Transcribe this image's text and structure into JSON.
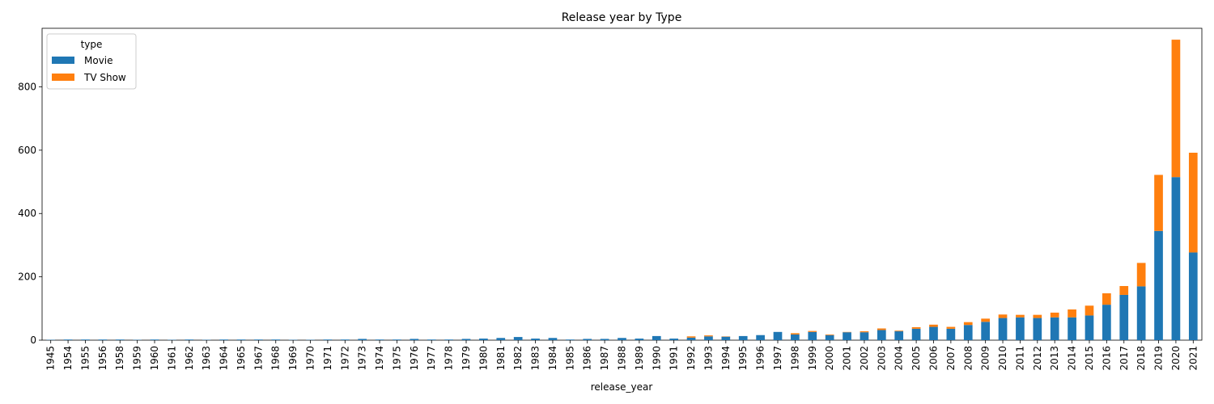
{
  "chart_data": {
    "type": "bar",
    "stacked": true,
    "title": "Release year by Type",
    "xlabel": "release_year",
    "ylabel": "",
    "ylim": [
      0,
      985
    ],
    "yticks": [
      0,
      200,
      400,
      600,
      800
    ],
    "grid": false,
    "legend": {
      "title": "type",
      "placement": "top-left"
    },
    "categories": [
      "1945",
      "1954",
      "1955",
      "1956",
      "1958",
      "1959",
      "1960",
      "1961",
      "1962",
      "1963",
      "1964",
      "1965",
      "1967",
      "1968",
      "1969",
      "1970",
      "1971",
      "1972",
      "1973",
      "1974",
      "1975",
      "1976",
      "1977",
      "1978",
      "1979",
      "1980",
      "1981",
      "1982",
      "1983",
      "1984",
      "1985",
      "1986",
      "1987",
      "1988",
      "1989",
      "1990",
      "1991",
      "1992",
      "1993",
      "1994",
      "1995",
      "1996",
      "1997",
      "1998",
      "1999",
      "2000",
      "2001",
      "2002",
      "2003",
      "2004",
      "2005",
      "2006",
      "2007",
      "2008",
      "2009",
      "2010",
      "2011",
      "2012",
      "2013",
      "2014",
      "2015",
      "2016",
      "2017",
      "2018",
      "2019",
      "2020",
      "2021"
    ],
    "series": [
      {
        "name": "Movie",
        "color": "#1f77b4",
        "values": [
          1,
          2,
          2,
          2,
          2,
          1,
          2,
          1,
          2,
          1,
          2,
          2,
          2,
          2,
          1,
          1,
          2,
          2,
          4,
          2,
          2,
          4,
          2,
          2,
          4,
          5,
          7,
          10,
          5,
          7,
          2,
          4,
          4,
          7,
          5,
          13,
          5,
          8,
          12,
          11,
          13,
          16,
          26,
          18,
          26,
          16,
          25,
          25,
          32,
          28,
          36,
          42,
          36,
          48,
          58,
          70,
          72,
          70,
          72,
          72,
          78,
          112,
          143,
          170,
          345,
          515,
          277
        ]
      },
      {
        "name": "TV Show",
        "color": "#ff7f0e",
        "values": [
          0,
          0,
          0,
          0,
          0,
          0,
          0,
          0,
          0,
          0,
          0,
          0,
          0,
          0,
          0,
          0,
          0,
          0,
          0,
          0,
          0,
          0,
          0,
          0,
          0,
          0,
          0,
          0,
          0,
          0,
          0,
          0,
          0,
          0,
          0,
          0,
          0,
          4,
          3,
          1,
          0,
          0,
          0,
          4,
          3,
          2,
          1,
          3,
          5,
          2,
          5,
          7,
          6,
          9,
          10,
          11,
          8,
          10,
          15,
          25,
          31,
          36,
          28,
          74,
          177,
          434,
          315
        ]
      }
    ]
  }
}
